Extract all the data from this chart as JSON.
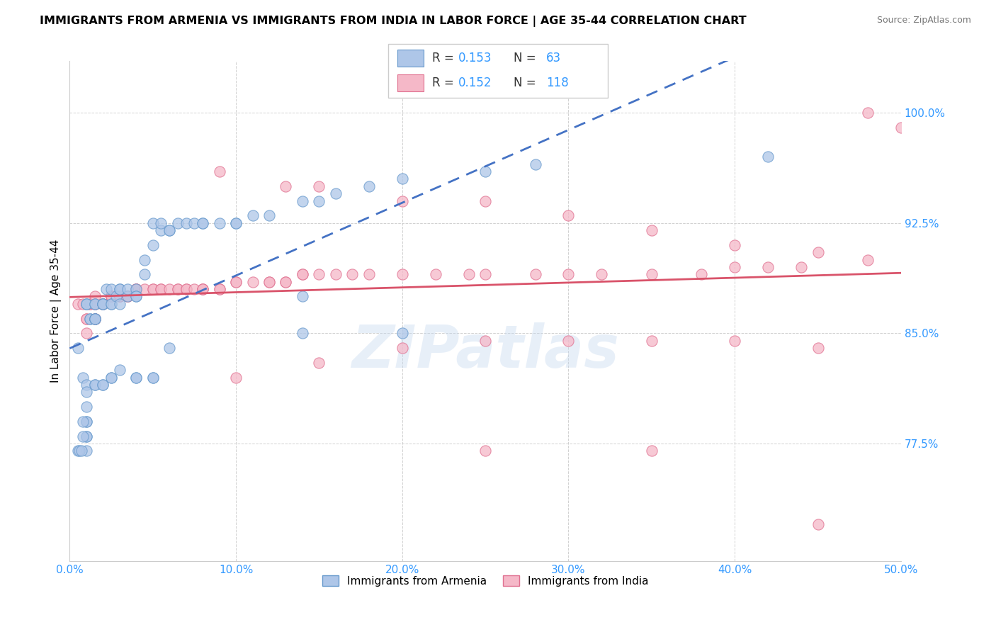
{
  "title": "IMMIGRANTS FROM ARMENIA VS IMMIGRANTS FROM INDIA IN LABOR FORCE | AGE 35-44 CORRELATION CHART",
  "source": "Source: ZipAtlas.com",
  "xlim": [
    0.0,
    0.5
  ],
  "ylim": [
    0.695,
    1.035
  ],
  "ytick_vals": [
    0.775,
    0.85,
    0.925,
    1.0
  ],
  "ytick_labels": [
    "77.5%",
    "85.0%",
    "92.5%",
    "100.0%"
  ],
  "xtick_vals": [
    0.0,
    0.1,
    0.2,
    0.3,
    0.4,
    0.5
  ],
  "xtick_labels": [
    "0.0%",
    "10.0%",
    "20.0%",
    "30.0%",
    "40.0%",
    "50.0%"
  ],
  "armenia_color": "#aec6e8",
  "india_color": "#f5b8c8",
  "armenia_edge": "#6699cc",
  "india_edge": "#e07090",
  "trend_armenia_color": "#4472c4",
  "trend_india_color": "#d9536a",
  "watermark_text": "ZIPatlas",
  "legend_text": "R = 0.153   N =  63\nR = 0.152   N = 118",
  "bottom_legend_armenia": "Immigrants from Armenia",
  "bottom_legend_india": "Immigrants from India",
  "armenia_x": [
    0.005,
    0.008,
    0.01,
    0.01,
    0.01,
    0.01,
    0.01,
    0.01,
    0.01,
    0.01,
    0.01,
    0.012,
    0.012,
    0.015,
    0.015,
    0.015,
    0.015,
    0.015,
    0.015,
    0.02,
    0.02,
    0.02,
    0.02,
    0.022,
    0.025,
    0.025,
    0.025,
    0.028,
    0.03,
    0.03,
    0.03,
    0.035,
    0.035,
    0.04,
    0.04,
    0.04,
    0.045,
    0.045,
    0.05,
    0.05,
    0.055,
    0.055,
    0.06,
    0.06,
    0.065,
    0.07,
    0.075,
    0.08,
    0.08,
    0.09,
    0.1,
    0.1,
    0.11,
    0.12,
    0.14,
    0.15,
    0.16,
    0.18,
    0.2,
    0.25,
    0.28,
    0.42,
    0.14
  ],
  "armenia_y": [
    0.84,
    0.82,
    0.8,
    0.79,
    0.79,
    0.78,
    0.78,
    0.77,
    0.87,
    0.87,
    0.87,
    0.86,
    0.86,
    0.86,
    0.86,
    0.86,
    0.86,
    0.87,
    0.87,
    0.87,
    0.87,
    0.87,
    0.87,
    0.88,
    0.87,
    0.87,
    0.88,
    0.875,
    0.88,
    0.88,
    0.87,
    0.875,
    0.88,
    0.88,
    0.875,
    0.875,
    0.89,
    0.9,
    0.91,
    0.925,
    0.92,
    0.925,
    0.92,
    0.92,
    0.925,
    0.925,
    0.925,
    0.925,
    0.925,
    0.925,
    0.925,
    0.925,
    0.93,
    0.93,
    0.94,
    0.94,
    0.945,
    0.95,
    0.955,
    0.96,
    0.965,
    0.97,
    0.875
  ],
  "armenia_outliers_x": [
    0.005,
    0.006,
    0.007,
    0.008,
    0.008,
    0.01,
    0.01,
    0.015,
    0.015,
    0.02,
    0.02,
    0.025,
    0.025,
    0.03,
    0.04,
    0.04,
    0.05,
    0.05,
    0.06,
    0.14,
    0.2
  ],
  "armenia_outliers_y": [
    0.77,
    0.77,
    0.77,
    0.79,
    0.78,
    0.815,
    0.81,
    0.815,
    0.815,
    0.815,
    0.815,
    0.82,
    0.82,
    0.825,
    0.82,
    0.82,
    0.82,
    0.82,
    0.84,
    0.85,
    0.85
  ],
  "india_x": [
    0.005,
    0.008,
    0.01,
    0.01,
    0.01,
    0.012,
    0.012,
    0.015,
    0.015,
    0.015,
    0.015,
    0.015,
    0.015,
    0.015,
    0.015,
    0.02,
    0.02,
    0.02,
    0.025,
    0.025,
    0.025,
    0.025,
    0.025,
    0.025,
    0.03,
    0.03,
    0.03,
    0.035,
    0.035,
    0.035,
    0.04,
    0.04,
    0.04,
    0.04,
    0.045,
    0.05,
    0.05,
    0.055,
    0.055,
    0.06,
    0.065,
    0.065,
    0.07,
    0.07,
    0.075,
    0.08,
    0.08,
    0.08,
    0.09,
    0.09,
    0.1,
    0.1,
    0.11,
    0.12,
    0.12,
    0.13,
    0.13,
    0.14,
    0.14,
    0.15,
    0.16,
    0.17,
    0.18,
    0.2,
    0.22,
    0.24,
    0.25,
    0.28,
    0.3,
    0.32,
    0.35,
    0.38,
    0.4,
    0.42,
    0.44,
    0.48,
    0.09,
    0.13,
    0.15,
    0.2,
    0.25,
    0.3,
    0.35,
    0.4,
    0.45,
    0.1,
    0.15,
    0.2,
    0.25,
    0.3,
    0.35,
    0.4,
    0.45,
    0.25,
    0.35,
    0.45,
    0.48,
    0.5
  ],
  "india_y": [
    0.87,
    0.87,
    0.86,
    0.86,
    0.85,
    0.87,
    0.87,
    0.86,
    0.86,
    0.86,
    0.86,
    0.87,
    0.87,
    0.87,
    0.875,
    0.87,
    0.87,
    0.87,
    0.875,
    0.875,
    0.875,
    0.875,
    0.875,
    0.875,
    0.875,
    0.875,
    0.875,
    0.875,
    0.875,
    0.875,
    0.88,
    0.88,
    0.88,
    0.88,
    0.88,
    0.88,
    0.88,
    0.88,
    0.88,
    0.88,
    0.88,
    0.88,
    0.88,
    0.88,
    0.88,
    0.88,
    0.88,
    0.88,
    0.88,
    0.88,
    0.885,
    0.885,
    0.885,
    0.885,
    0.885,
    0.885,
    0.885,
    0.89,
    0.89,
    0.89,
    0.89,
    0.89,
    0.89,
    0.89,
    0.89,
    0.89,
    0.89,
    0.89,
    0.89,
    0.89,
    0.89,
    0.89,
    0.895,
    0.895,
    0.895,
    1.0,
    0.96,
    0.95,
    0.95,
    0.94,
    0.94,
    0.93,
    0.92,
    0.91,
    0.905,
    0.82,
    0.83,
    0.84,
    0.845,
    0.845,
    0.845,
    0.845,
    0.84,
    0.77,
    0.77,
    0.72,
    0.9,
    0.99
  ]
}
